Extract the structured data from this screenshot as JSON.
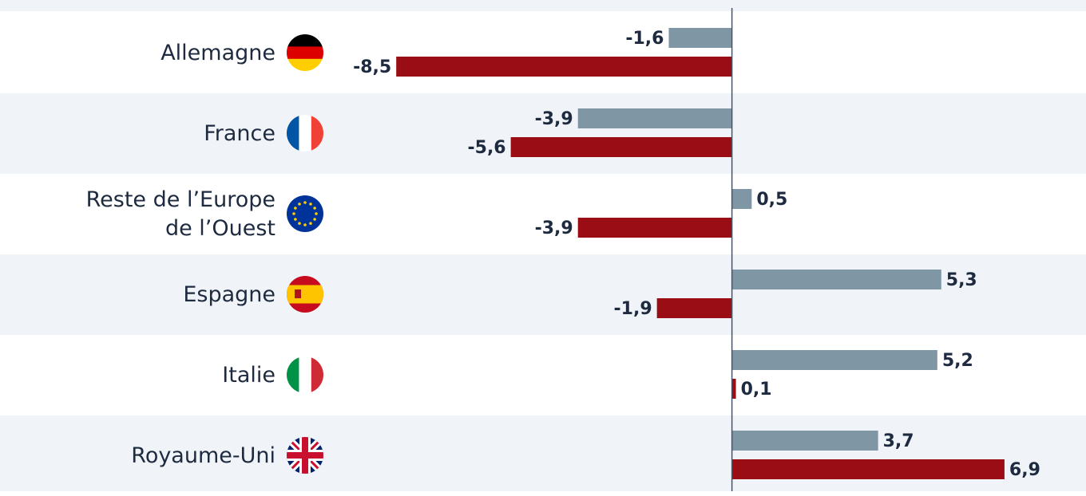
{
  "chart_data": {
    "type": "bar",
    "orientation": "horizontal",
    "categories": [
      "Allemagne",
      "France",
      "Reste de l’Europe de l’Ouest",
      "Espagne",
      "Italie",
      "Royaume-Uni"
    ],
    "series": [
      {
        "color": "#7f96a4",
        "values": [
          -1.6,
          -3.9,
          0.5,
          5.3,
          5.2,
          3.7
        ],
        "value_labels": [
          "-1,6",
          "-3,9",
          "0,5",
          "5,3",
          "5,2",
          "3,7"
        ]
      },
      {
        "color": "#9b0d14",
        "values": [
          -8.5,
          -5.6,
          -3.9,
          -1.9,
          0.1,
          6.9
        ],
        "value_labels": [
          "-8,5",
          "-5,6",
          "-3,9",
          "-1,9",
          "0,1",
          "6,9"
        ]
      }
    ],
    "xlim": [
      -10,
      8.6
    ]
  }
}
